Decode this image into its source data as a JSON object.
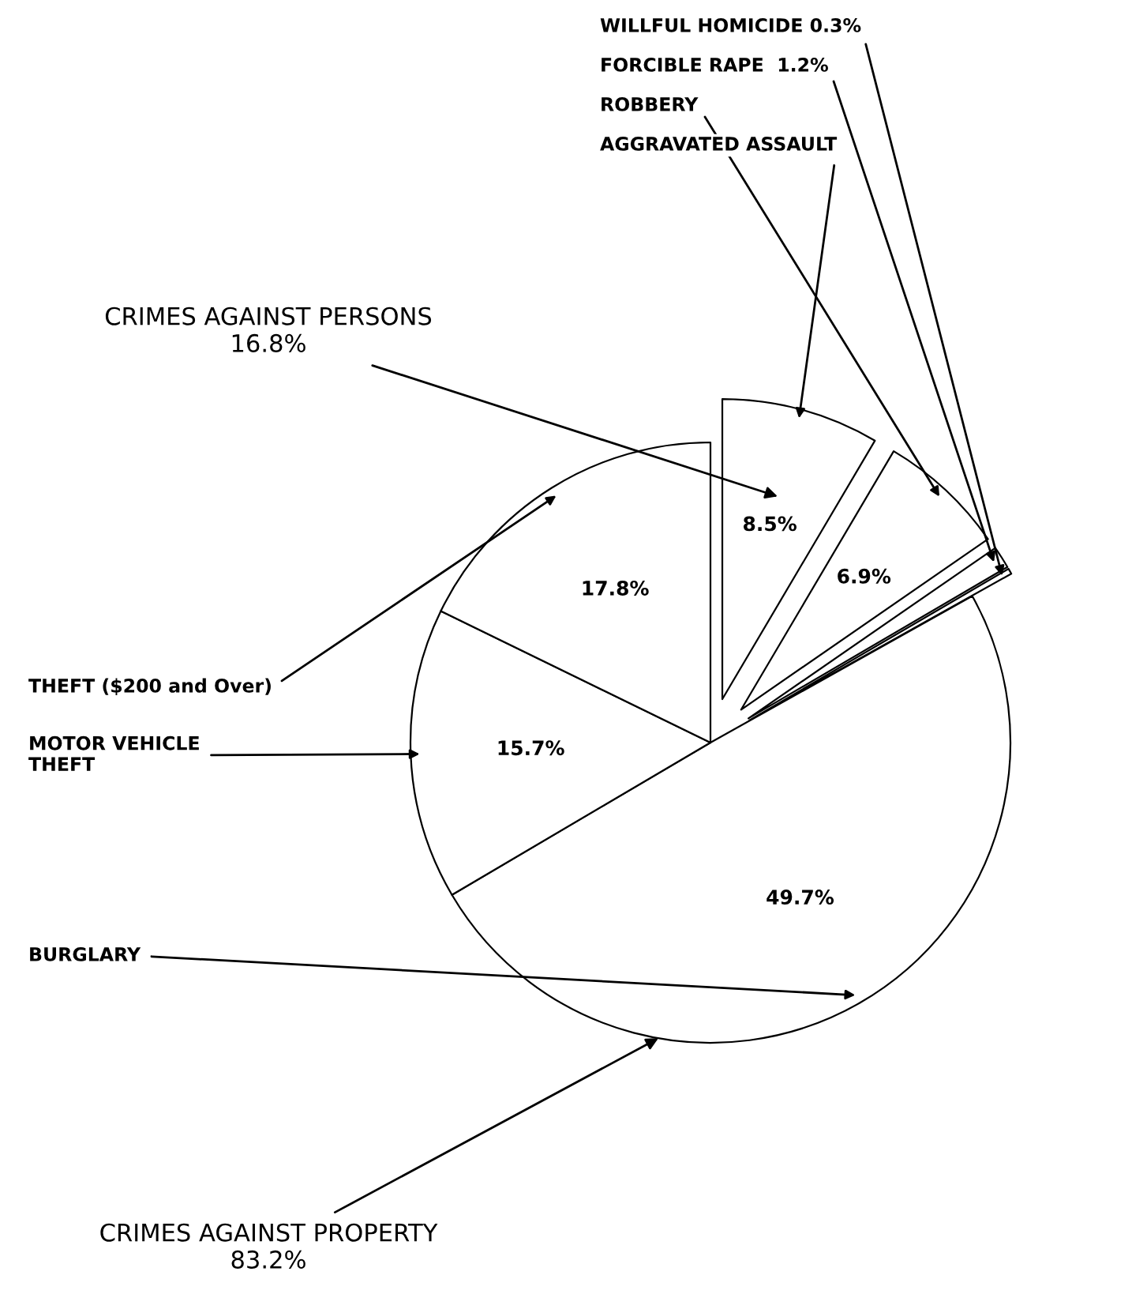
{
  "chart_data": {
    "type": "pie",
    "categories": [
      "AGGRAVATED ASSAULT",
      "ROBBERY",
      "FORCIBLE RAPE  1.2%",
      "WILLFUL HOMICIDE 0.3%",
      "BURGLARY",
      "MOTOR VEHICLE\nTHEFT",
      "THEFT ($200 and Over)"
    ],
    "values": [
      8.5,
      6.9,
      1.2,
      0.3,
      49.7,
      15.7,
      17.8
    ],
    "colors": [
      "#ffffff",
      "#ffffff",
      "#ffffff",
      "#ffffff",
      "#ffffff",
      "#ffffff",
      "#ffffff"
    ],
    "value_labels": [
      "8.5%",
      "6.9%",
      null,
      null,
      "49.7%",
      "15.7%",
      "17.8%"
    ],
    "annotations": [
      "CRIMES AGAINST PERSONS\n16.8%",
      "CRIMES AGAINST PROPERTY\n83.2%"
    ],
    "legend": false
  }
}
